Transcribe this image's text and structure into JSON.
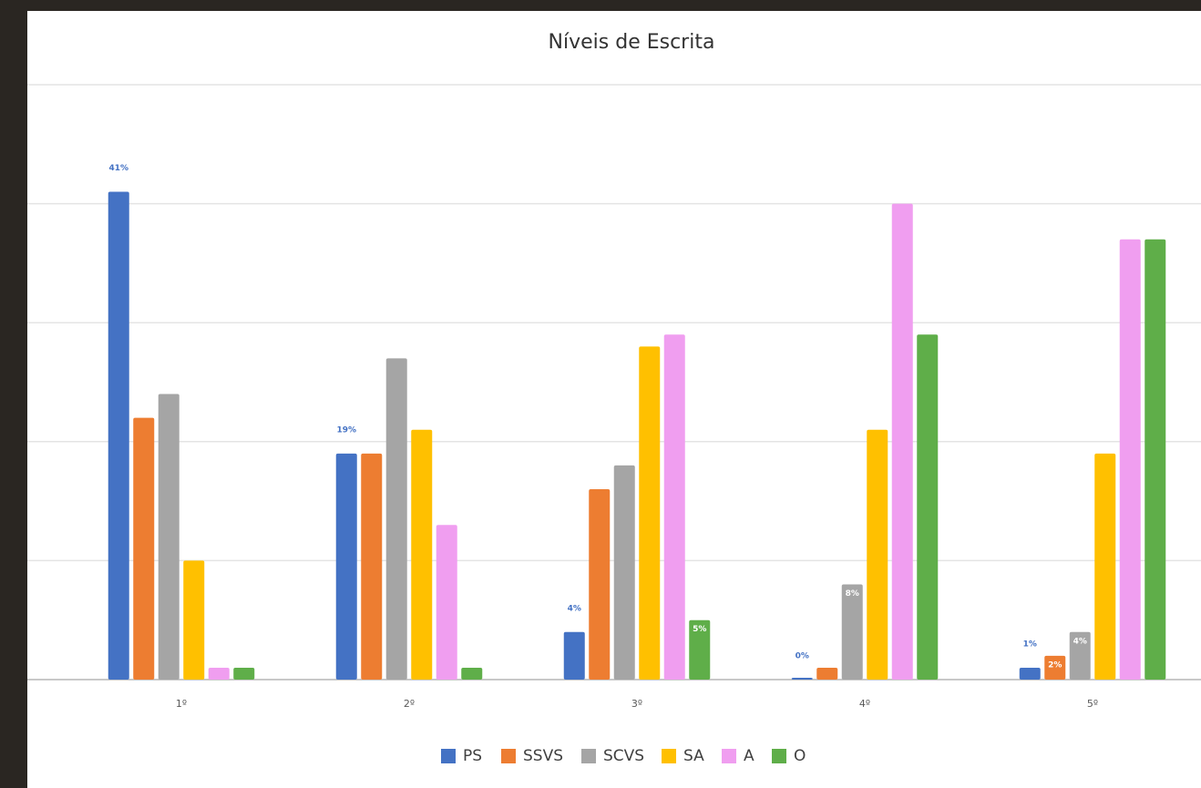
{
  "chart_data": {
    "type": "bar",
    "title": "Níveis de Escrita",
    "categories": [
      "1º",
      "2º",
      "3º",
      "4º",
      "5º"
    ],
    "ylim": [
      0,
      50
    ],
    "yticks": [
      0,
      10,
      20,
      30,
      40,
      50
    ],
    "grid": true,
    "legend": "bottom",
    "series": [
      {
        "name": "PS",
        "color": "#4472c4",
        "values": [
          41,
          19,
          4,
          0,
          1
        ],
        "value_labels": [
          "41%",
          "19%",
          "4%",
          "0%",
          "1%"
        ]
      },
      {
        "name": "SSVS",
        "color": "#ed7d31",
        "values": [
          22,
          19,
          16,
          1,
          2
        ],
        "value_labels": [
          null,
          null,
          null,
          null,
          "2%"
        ]
      },
      {
        "name": "SCVS",
        "color": "#a5a5a5",
        "values": [
          24,
          27,
          18,
          8,
          4
        ],
        "value_labels": [
          null,
          null,
          null,
          "8%",
          "4%"
        ]
      },
      {
        "name": "SA",
        "color": "#ffc000",
        "values": [
          10,
          21,
          28,
          21,
          19
        ]
      },
      {
        "name": "A",
        "color": "#f09ef0",
        "values": [
          1,
          13,
          29,
          40,
          37
        ]
      },
      {
        "name": "O",
        "color": "#5fae49",
        "values": [
          1,
          1,
          5,
          29,
          37
        ],
        "value_labels": [
          null,
          null,
          "5%",
          null,
          null
        ]
      }
    ]
  }
}
